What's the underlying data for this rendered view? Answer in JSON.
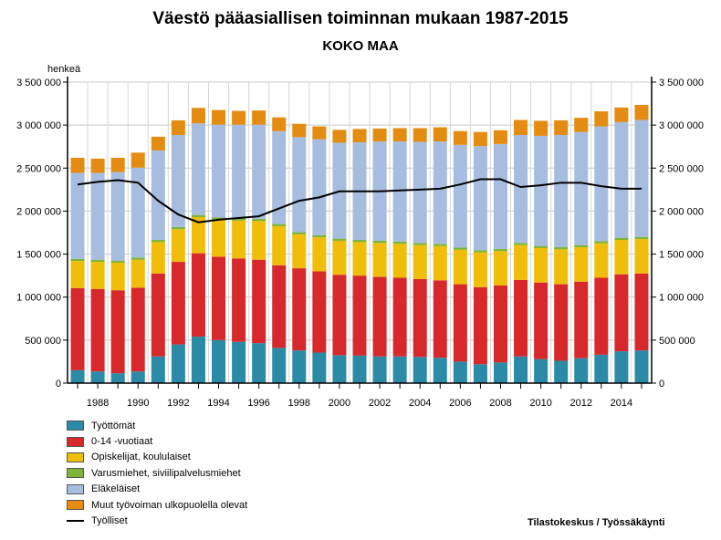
{
  "title": "Väestö pääasiallisen toiminnan mukaan 1987-2015",
  "subtitle": "KOKO MAA",
  "source": "Tilastokeskus / Työssäkäynti",
  "chart_data": {
    "type": "bar",
    "stacked": true,
    "ylabel": "henkeä",
    "ylim": [
      0,
      3500000
    ],
    "yticks": [
      0,
      500000,
      1000000,
      1500000,
      2000000,
      2500000,
      3000000,
      3500000
    ],
    "ytick_labels": [
      "0",
      "500 000",
      "1 000 000",
      "1 500 000",
      "2 000 000",
      "2 500 000",
      "3 000 000",
      "3 500 000"
    ],
    "right_ytick_labels": [
      "0",
      "500 000",
      "1 000 000",
      "1 500 000",
      "2 000 000",
      "2 500 000",
      "3 000 000",
      "3 500 000"
    ],
    "categories": [
      1987,
      1988,
      1989,
      1990,
      1991,
      1992,
      1993,
      1994,
      1995,
      1996,
      1997,
      1998,
      1999,
      2000,
      2001,
      2002,
      2003,
      2004,
      2005,
      2006,
      2007,
      2008,
      2009,
      2010,
      2011,
      2012,
      2013,
      2014,
      2015
    ],
    "xtick_labels": [
      "1988",
      "1990",
      "1992",
      "1994",
      "1996",
      "1998",
      "2000",
      "2002",
      "2004",
      "2006",
      "2008",
      "2010",
      "2012",
      "2014"
    ],
    "grid": true,
    "legend_position": "bottom-left",
    "series": [
      {
        "name": "Työttömät",
        "color": "#2b8aa6",
        "values": [
          150000,
          135000,
          115000,
          135000,
          310000,
          450000,
          540000,
          500000,
          480000,
          465000,
          410000,
          380000,
          355000,
          325000,
          320000,
          310000,
          310000,
          305000,
          295000,
          250000,
          220000,
          240000,
          310000,
          280000,
          260000,
          290000,
          330000,
          370000,
          380000
        ]
      },
      {
        "name": "0-14 -vuotiaat",
        "color": "#d7292b",
        "values": [
          955000,
          960000,
          965000,
          975000,
          965000,
          960000,
          970000,
          970000,
          970000,
          970000,
          960000,
          955000,
          945000,
          935000,
          930000,
          925000,
          915000,
          905000,
          900000,
          900000,
          895000,
          895000,
          890000,
          890000,
          890000,
          890000,
          895000,
          895000,
          895000
        ]
      },
      {
        "name": "Opiskelijat, koululaiset",
        "color": "#f0be0a",
        "values": [
          315000,
          315000,
          320000,
          325000,
          365000,
          380000,
          420000,
          430000,
          440000,
          450000,
          455000,
          395000,
          395000,
          395000,
          390000,
          395000,
          395000,
          395000,
          400000,
          400000,
          405000,
          400000,
          405000,
          400000,
          405000,
          400000,
          400000,
          400000,
          400000
        ]
      },
      {
        "name": "Varusmiehet, siviilipalvelusmiehet",
        "color": "#7db43a",
        "values": [
          25000,
          25000,
          25000,
          25000,
          25000,
          25000,
          25000,
          25000,
          25000,
          25000,
          25000,
          25000,
          25000,
          25000,
          25000,
          25000,
          25000,
          25000,
          25000,
          25000,
          25000,
          25000,
          25000,
          25000,
          25000,
          25000,
          25000,
          25000,
          25000
        ]
      },
      {
        "name": "Eläkeläiset",
        "color": "#a7bddf",
        "values": [
          1000000,
          1010000,
          1030000,
          1045000,
          1040000,
          1070000,
          1065000,
          1080000,
          1090000,
          1095000,
          1080000,
          1105000,
          1115000,
          1115000,
          1135000,
          1155000,
          1165000,
          1175000,
          1190000,
          1195000,
          1210000,
          1220000,
          1255000,
          1280000,
          1305000,
          1315000,
          1335000,
          1345000,
          1360000
        ]
      },
      {
        "name": "Muut työvoiman ulkopuolella olevat",
        "color": "#e48c12",
        "values": [
          175000,
          165000,
          165000,
          175000,
          160000,
          170000,
          180000,
          170000,
          160000,
          165000,
          160000,
          155000,
          150000,
          150000,
          155000,
          150000,
          155000,
          160000,
          165000,
          160000,
          165000,
          160000,
          175000,
          175000,
          170000,
          165000,
          175000,
          170000,
          175000
        ]
      },
      {
        "name": "Työlliset",
        "color": "#000000",
        "type": "line",
        "values": [
          2310000,
          2340000,
          2360000,
          2330000,
          2120000,
          1960000,
          1870000,
          1900000,
          1920000,
          1940000,
          2030000,
          2120000,
          2160000,
          2230000,
          2230000,
          2230000,
          2240000,
          2250000,
          2260000,
          2310000,
          2370000,
          2370000,
          2280000,
          2300000,
          2330000,
          2330000,
          2290000,
          2260000,
          2260000
        ]
      }
    ]
  }
}
